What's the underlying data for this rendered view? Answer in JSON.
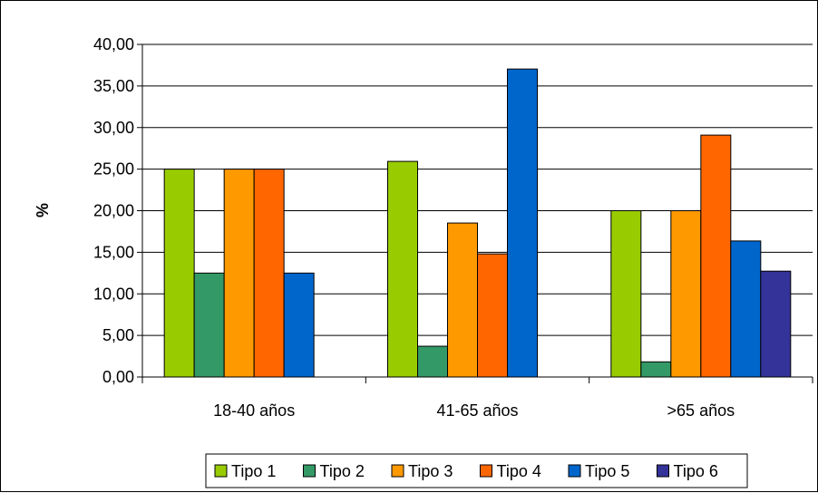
{
  "chart_data": {
    "type": "bar",
    "title": "",
    "xlabel": "",
    "ylabel": "%",
    "ylim": [
      0,
      40
    ],
    "y_ticks": [
      "0,00",
      "5,00",
      "10,00",
      "15,00",
      "20,00",
      "25,00",
      "30,00",
      "35,00",
      "40,00"
    ],
    "grid": true,
    "legend_position": "bottom",
    "categories": [
      "18-40 años",
      "41-65 años",
      ">65 años"
    ],
    "series": [
      {
        "name": "Tipo 1",
        "color": "#99cc00",
        "values": [
          25.0,
          25.93,
          20.0
        ]
      },
      {
        "name": "Tipo 2",
        "color": "#339966",
        "values": [
          12.5,
          3.7,
          1.82
        ]
      },
      {
        "name": "Tipo 3",
        "color": "#ff9900",
        "values": [
          25.0,
          18.52,
          20.0
        ]
      },
      {
        "name": "Tipo 4",
        "color": "#ff6600",
        "values": [
          25.0,
          14.81,
          29.09
        ]
      },
      {
        "name": "Tipo 5",
        "color": "#0066cc",
        "values": [
          12.5,
          37.04,
          16.36
        ]
      },
      {
        "name": "Tipo 6",
        "color": "#333399",
        "values": [
          0,
          0,
          12.73
        ]
      }
    ]
  }
}
